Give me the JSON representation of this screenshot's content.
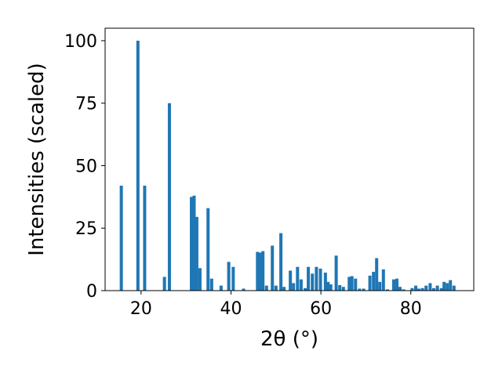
{
  "chart_data": {
    "type": "bar",
    "xlabel": "2θ (°)",
    "ylabel": "Intensities (scaled)",
    "xlim": [
      12,
      94
    ],
    "ylim": [
      0,
      105
    ],
    "xticks": [
      20,
      40,
      60,
      80
    ],
    "yticks": [
      0,
      25,
      50,
      75,
      100
    ],
    "grid": false,
    "legend": "none",
    "bar_color": "#1f77b4",
    "bar_width": 0.7,
    "x": [
      15.6,
      19.3,
      20.8,
      25.2,
      26.3,
      31.2,
      31.8,
      32.4,
      33.1,
      34.9,
      35.7,
      37.8,
      39.5,
      40.5,
      42.8,
      45.9,
      46.5,
      47.1,
      47.9,
      49.2,
      50.0,
      51.1,
      51.8,
      53.2,
      53.9,
      54.8,
      55.6,
      56.5,
      57.2,
      58.1,
      59.0,
      59.9,
      61.0,
      61.6,
      62.2,
      63.4,
      64.2,
      65.0,
      66.3,
      66.9,
      67.7,
      68.6,
      69.5,
      70.9,
      71.7,
      72.4,
      73.1,
      73.9,
      74.8,
      76.2,
      76.9,
      77.6,
      78.4,
      80.3,
      81.1,
      81.8,
      82.6,
      83.4,
      84.3,
      85.1,
      85.9,
      86.8,
      87.4,
      88.1,
      88.8,
      89.6
    ],
    "values": [
      42,
      100,
      42,
      5.5,
      75,
      37.5,
      38,
      29.5,
      9,
      33,
      4.8,
      2,
      11.5,
      9.5,
      0.8,
      15.5,
      15.2,
      15.8,
      2,
      18,
      2,
      23,
      1.5,
      8,
      3,
      9.5,
      4.5,
      1,
      9.5,
      6.8,
      9.5,
      8.8,
      7.2,
      3.5,
      2.5,
      14,
      2.2,
      1.5,
      5.5,
      5.8,
      4.8,
      0.8,
      0.8,
      6,
      7.5,
      13,
      3.5,
      8.5,
      0.5,
      4.5,
      4.8,
      1.5,
      0.5,
      1,
      2,
      0.8,
      1,
      2,
      3,
      1,
      2,
      1,
      3.5,
      3,
      4.2,
      2
    ]
  }
}
